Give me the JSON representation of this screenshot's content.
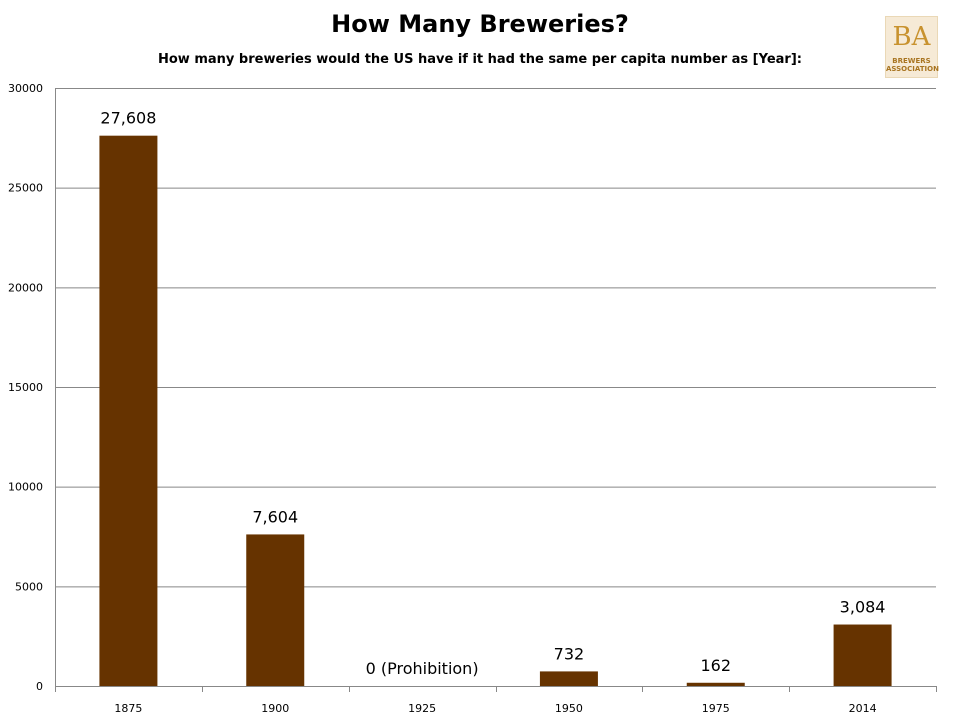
{
  "chart_data": {
    "type": "bar",
    "title": "How Many Breweries?",
    "subtitle": "How many breweries would the US have if it had the same per capita number as [Year]:",
    "categories": [
      "1875",
      "1900",
      "1925",
      "1950",
      "1975",
      "2014"
    ],
    "values": [
      27608,
      7604,
      0,
      732,
      162,
      3084
    ],
    "data_labels": [
      "27,608",
      "7,604",
      "0 (Prohibition)",
      "732",
      "162",
      "3,084"
    ],
    "y_ticks": [
      "0",
      "5000",
      "10000",
      "15000",
      "20000",
      "25000",
      "30000"
    ],
    "ylim": [
      0,
      30000
    ],
    "grid": true,
    "legend": "none",
    "bar_color": "#663300",
    "grid_color": "#888888"
  },
  "logo": {
    "letters": "BA",
    "line1": "BREWERS",
    "line2": "ASSOCIATION"
  }
}
